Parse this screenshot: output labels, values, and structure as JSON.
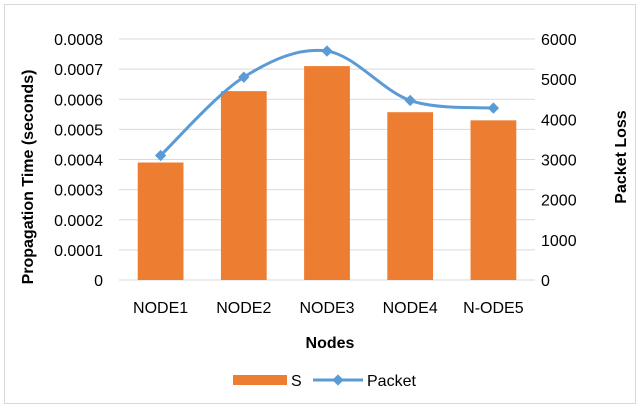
{
  "chart_data": {
    "type": "bar",
    "categories": [
      "NODE1",
      "NODE2",
      "NODE3",
      "NODE4",
      "N-ODE5"
    ],
    "series": [
      {
        "name": "S",
        "type": "bar",
        "axis": "left",
        "color": "#ED7D31",
        "values": [
          0.00039,
          0.000627,
          0.00071,
          0.000557,
          0.00053
        ]
      },
      {
        "name": "Packet",
        "type": "line",
        "axis": "right",
        "color": "#5B9BD5",
        "smooth": true,
        "marker": "diamond",
        "values": [
          3100,
          5050,
          5700,
          4470,
          4280
        ]
      }
    ],
    "xlabel": "Nodes",
    "ylabel": "Propagation Time (seconds)",
    "y2label": "Packet Loss",
    "ylim": [
      0,
      0.0008
    ],
    "y2lim": [
      0,
      6000
    ],
    "yticks": [
      "0",
      "0.0001",
      "0.0002",
      "0.0003",
      "0.0004",
      "0.0005",
      "0.0006",
      "0.0007",
      "0.0008"
    ],
    "y2ticks": [
      "0",
      "1000",
      "2000",
      "3000",
      "4000",
      "5000",
      "6000"
    ],
    "grid": true,
    "legend_position": "bottom"
  }
}
